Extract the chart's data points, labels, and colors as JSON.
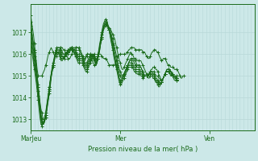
{
  "title": "Pression niveau de la mer( hPa )",
  "bg_color": "#cce8e8",
  "line_color": "#1a6b1a",
  "grid_color_v": "#b8d8d8",
  "grid_color_h": "#b8d8d8",
  "tick_color": "#1a6b1a",
  "ylim": [
    1012.5,
    1018.3
  ],
  "yticks": [
    1013,
    1014,
    1015,
    1016,
    1017
  ],
  "xtick_labels": [
    "MarJeu",
    "Mer",
    "Ven"
  ],
  "xtick_positions": [
    0,
    96,
    192
  ],
  "total_points": 241,
  "series": [
    [
      1017.8,
      1017.5,
      1017.2,
      1016.9,
      1016.5,
      1016.1,
      1015.7,
      1015.3,
      1015.0,
      1015.0,
      1015.0,
      1015.0,
      1015.0,
      1015.1,
      1015.2,
      1015.3,
      1015.5,
      1015.6,
      1015.8,
      1016.0,
      1016.1,
      1016.2,
      1016.3,
      1016.2,
      1016.1,
      1016.0,
      1015.9,
      1015.9,
      1015.9,
      1016.0,
      1016.1,
      1016.2,
      1016.3,
      1016.3,
      1016.3,
      1016.2,
      1016.2,
      1016.1,
      1016.0,
      1015.9,
      1015.8,
      1015.8,
      1015.8,
      1015.9,
      1016.0,
      1016.1,
      1016.2,
      1016.2,
      1016.3,
      1016.3,
      1016.3,
      1016.3,
      1016.3,
      1016.2,
      1016.1,
      1016.0,
      1015.9,
      1015.8,
      1015.8,
      1015.9,
      1016.0,
      1016.0,
      1016.0,
      1016.0,
      1016.0,
      1016.0,
      1015.9,
      1015.9,
      1015.8,
      1015.8,
      1015.8,
      1015.8,
      1015.9,
      1016.0,
      1016.0,
      1016.0,
      1015.9,
      1015.9,
      1015.8,
      1015.8,
      1015.8,
      1015.8,
      1015.7,
      1015.6,
      1015.5,
      1015.5,
      1015.5,
      1015.5,
      1015.5,
      1015.5,
      1015.5,
      1015.6,
      1015.7,
      1015.8,
      1015.9,
      1016.0,
      1016.0,
      1016.0,
      1016.0,
      1016.0,
      1016.0,
      1016.0,
      1016.0,
      1016.1,
      1016.1,
      1016.2,
      1016.2,
      1016.3,
      1016.3,
      1016.3,
      1016.3,
      1016.3,
      1016.2,
      1016.2,
      1016.2,
      1016.2,
      1016.2,
      1016.2,
      1016.2,
      1016.2,
      1016.1,
      1016.1,
      1016.1,
      1016.0,
      1015.9,
      1015.9,
      1015.8,
      1015.8,
      1015.9,
      1016.0,
      1016.1,
      1016.1,
      1016.2,
      1016.2,
      1016.2,
      1016.1,
      1016.1,
      1016.0,
      1015.9,
      1015.8,
      1015.7,
      1015.7,
      1015.8,
      1015.8,
      1015.8,
      1015.7,
      1015.6,
      1015.5,
      1015.5,
      1015.5,
      1015.4,
      1015.4,
      1015.4,
      1015.4,
      1015.3,
      1015.3,
      1015.3,
      1015.3,
      1015.2,
      1015.1,
      1015.0,
      1014.9,
      1014.9,
      1015.0,
      1015.0
    ],
    [
      1017.5,
      1017.2,
      1016.8,
      1016.5,
      1016.2,
      1015.9,
      1015.5,
      1015.0,
      1014.6,
      1014.2,
      1013.8,
      1013.5,
      1013.3,
      1013.1,
      1013.0,
      1013.0,
      1013.1,
      1013.3,
      1013.6,
      1013.9,
      1014.2,
      1014.5,
      1014.9,
      1015.2,
      1015.5,
      1015.7,
      1015.9,
      1016.1,
      1016.2,
      1016.3,
      1016.3,
      1016.3,
      1016.3,
      1016.2,
      1016.1,
      1016.0,
      1016.0,
      1016.0,
      1016.0,
      1016.0,
      1016.1,
      1016.1,
      1016.2,
      1016.2,
      1016.3,
      1016.3,
      1016.3,
      1016.3,
      1016.3,
      1016.3,
      1016.3,
      1016.3,
      1016.2,
      1016.1,
      1016.0,
      1015.9,
      1015.8,
      1015.7,
      1015.7,
      1015.8,
      1015.9,
      1016.0,
      1016.0,
      1016.0,
      1015.9,
      1015.8,
      1015.7,
      1015.6,
      1015.5,
      1015.5,
      1015.5,
      1015.6,
      1015.8,
      1016.0,
      1016.2,
      1016.5,
      1016.7,
      1016.9,
      1017.1,
      1017.2,
      1017.3,
      1017.3,
      1017.3,
      1017.2,
      1017.2,
      1017.2,
      1017.1,
      1017.0,
      1016.9,
      1016.8,
      1016.7,
      1016.5,
      1016.3,
      1016.1,
      1015.9,
      1015.7,
      1015.6,
      1015.4,
      1015.3,
      1015.3,
      1015.4,
      1015.5,
      1015.6,
      1015.7,
      1015.8,
      1015.9,
      1016.0,
      1016.1,
      1016.0,
      1016.0,
      1015.9,
      1015.8,
      1015.8,
      1015.7,
      1015.7,
      1015.7,
      1015.7,
      1015.7,
      1015.7,
      1015.6,
      1015.5,
      1015.4,
      1015.3,
      1015.2,
      1015.1,
      1015.0,
      1015.0,
      1015.1,
      1015.2,
      1015.3,
      1015.3,
      1015.4,
      1015.4,
      1015.4,
      1015.3,
      1015.3,
      1015.2,
      1015.1,
      1015.0,
      1014.9,
      1014.8,
      1014.8,
      1014.9,
      1015.0,
      1015.1,
      1015.2,
      1015.2,
      1015.2,
      1015.2,
      1015.2,
      1015.2,
      1015.1,
      1015.0,
      1015.0,
      1015.0,
      1015.0,
      1015.0,
      1015.0,
      1015.0
    ],
    [
      1017.3,
      1017.0,
      1016.7,
      1016.4,
      1016.1,
      1015.8,
      1015.4,
      1015.0,
      1014.5,
      1014.0,
      1013.6,
      1013.2,
      1013.0,
      1012.9,
      1012.9,
      1013.0,
      1013.2,
      1013.5,
      1013.8,
      1014.1,
      1014.5,
      1014.8,
      1015.1,
      1015.4,
      1015.6,
      1015.8,
      1016.0,
      1016.2,
      1016.3,
      1016.3,
      1016.3,
      1016.3,
      1016.2,
      1016.1,
      1016.0,
      1016.0,
      1016.0,
      1016.0,
      1016.1,
      1016.1,
      1016.2,
      1016.2,
      1016.2,
      1016.3,
      1016.3,
      1016.3,
      1016.2,
      1016.2,
      1016.2,
      1016.1,
      1016.0,
      1016.0,
      1016.0,
      1016.0,
      1016.0,
      1015.9,
      1015.8,
      1015.7,
      1015.6,
      1015.6,
      1015.6,
      1015.7,
      1015.8,
      1015.9,
      1016.0,
      1016.0,
      1015.9,
      1015.8,
      1015.7,
      1015.6,
      1015.6,
      1015.7,
      1015.9,
      1016.1,
      1016.3,
      1016.6,
      1016.8,
      1017.0,
      1017.2,
      1017.3,
      1017.4,
      1017.4,
      1017.4,
      1017.3,
      1017.2,
      1017.1,
      1017.0,
      1016.8,
      1016.7,
      1016.5,
      1016.3,
      1016.1,
      1015.9,
      1015.7,
      1015.5,
      1015.3,
      1015.2,
      1015.1,
      1015.0,
      1015.0,
      1015.1,
      1015.2,
      1015.3,
      1015.4,
      1015.5,
      1015.6,
      1015.7,
      1015.8,
      1015.8,
      1015.8,
      1015.8,
      1015.7,
      1015.7,
      1015.6,
      1015.5,
      1015.5,
      1015.5,
      1015.5,
      1015.4,
      1015.3,
      1015.2,
      1015.1,
      1015.0,
      1015.0,
      1015.0,
      1015.0,
      1015.1,
      1015.1,
      1015.2,
      1015.2,
      1015.2,
      1015.2,
      1015.2,
      1015.1,
      1015.0,
      1015.0,
      1015.0,
      1014.9,
      1014.9,
      1014.8,
      1014.8,
      1014.8,
      1014.9,
      1015.0,
      1015.1,
      1015.2,
      1015.3,
      1015.3,
      1015.3,
      1015.3,
      1015.2,
      1015.2,
      1015.1,
      1015.0,
      1015.0,
      1015.0,
      1014.9,
      1014.9,
      1014.9
    ],
    [
      1017.1,
      1016.8,
      1016.5,
      1016.2,
      1015.9,
      1015.6,
      1015.2,
      1014.9,
      1014.5,
      1014.1,
      1013.7,
      1013.3,
      1013.0,
      1012.8,
      1012.8,
      1012.9,
      1013.1,
      1013.4,
      1013.7,
      1014.0,
      1014.4,
      1014.7,
      1015.0,
      1015.3,
      1015.5,
      1015.7,
      1015.9,
      1016.1,
      1016.2,
      1016.2,
      1016.2,
      1016.2,
      1016.1,
      1016.0,
      1015.9,
      1015.9,
      1015.9,
      1016.0,
      1016.0,
      1016.1,
      1016.2,
      1016.2,
      1016.3,
      1016.3,
      1016.3,
      1016.3,
      1016.2,
      1016.2,
      1016.1,
      1016.0,
      1016.0,
      1015.9,
      1015.9,
      1015.9,
      1015.9,
      1015.9,
      1015.8,
      1015.7,
      1015.6,
      1015.5,
      1015.5,
      1015.6,
      1015.7,
      1015.8,
      1015.9,
      1016.0,
      1016.0,
      1015.9,
      1015.8,
      1015.6,
      1015.5,
      1015.6,
      1015.8,
      1016.0,
      1016.2,
      1016.5,
      1016.7,
      1017.0,
      1017.2,
      1017.3,
      1017.4,
      1017.4,
      1017.3,
      1017.2,
      1017.1,
      1017.0,
      1016.9,
      1016.7,
      1016.5,
      1016.3,
      1016.1,
      1015.9,
      1015.7,
      1015.5,
      1015.3,
      1015.1,
      1015.0,
      1014.9,
      1014.9,
      1015.0,
      1015.1,
      1015.2,
      1015.3,
      1015.4,
      1015.5,
      1015.6,
      1015.7,
      1015.7,
      1015.7,
      1015.7,
      1015.7,
      1015.6,
      1015.5,
      1015.5,
      1015.4,
      1015.4,
      1015.4,
      1015.4,
      1015.4,
      1015.3,
      1015.2,
      1015.1,
      1015.0,
      1015.0,
      1015.0,
      1015.0,
      1015.1,
      1015.1,
      1015.1,
      1015.2,
      1015.2,
      1015.1,
      1015.1,
      1015.0,
      1014.9,
      1014.9,
      1014.8,
      1014.8,
      1014.7,
      1014.7,
      1014.7,
      1014.8,
      1014.9,
      1015.0,
      1015.1,
      1015.2,
      1015.3,
      1015.3,
      1015.3,
      1015.3,
      1015.2,
      1015.1,
      1015.1,
      1015.0,
      1015.0,
      1015.0,
      1014.9,
      1014.8,
      1014.8
    ],
    [
      1016.9,
      1016.6,
      1016.3,
      1016.0,
      1015.7,
      1015.4,
      1015.1,
      1014.7,
      1014.3,
      1013.9,
      1013.5,
      1013.1,
      1012.9,
      1012.8,
      1012.8,
      1012.9,
      1013.1,
      1013.4,
      1013.7,
      1014.0,
      1014.3,
      1014.7,
      1015.0,
      1015.2,
      1015.5,
      1015.7,
      1015.9,
      1016.0,
      1016.1,
      1016.1,
      1016.1,
      1016.1,
      1016.0,
      1015.9,
      1015.9,
      1015.8,
      1015.9,
      1015.9,
      1016.0,
      1016.1,
      1016.1,
      1016.2,
      1016.2,
      1016.3,
      1016.3,
      1016.2,
      1016.2,
      1016.1,
      1016.0,
      1016.0,
      1015.9,
      1015.8,
      1015.8,
      1015.8,
      1015.8,
      1015.8,
      1015.7,
      1015.6,
      1015.5,
      1015.4,
      1015.4,
      1015.5,
      1015.6,
      1015.7,
      1015.8,
      1015.9,
      1016.0,
      1016.0,
      1015.9,
      1015.7,
      1015.5,
      1015.6,
      1015.8,
      1016.0,
      1016.3,
      1016.5,
      1016.8,
      1017.0,
      1017.2,
      1017.3,
      1017.4,
      1017.4,
      1017.3,
      1017.2,
      1017.1,
      1016.9,
      1016.8,
      1016.6,
      1016.4,
      1016.1,
      1015.9,
      1015.7,
      1015.5,
      1015.3,
      1015.1,
      1014.9,
      1014.8,
      1014.8,
      1014.9,
      1015.0,
      1015.1,
      1015.2,
      1015.3,
      1015.4,
      1015.5,
      1015.6,
      1015.6,
      1015.6,
      1015.6,
      1015.6,
      1015.5,
      1015.4,
      1015.4,
      1015.3,
      1015.3,
      1015.3,
      1015.3,
      1015.3,
      1015.2,
      1015.2,
      1015.1,
      1015.0,
      1015.0,
      1015.0,
      1015.0,
      1015.0,
      1015.0,
      1015.1,
      1015.1,
      1015.1,
      1015.1,
      1015.0,
      1015.0,
      1014.9,
      1014.8,
      1014.8,
      1014.7,
      1014.7,
      1014.6,
      1014.7,
      1014.7,
      1014.8,
      1014.9,
      1015.0,
      1015.1,
      1015.2,
      1015.3,
      1015.3,
      1015.3,
      1015.2,
      1015.2,
      1015.1,
      1015.0,
      1015.0,
      1015.0,
      1014.9,
      1014.9,
      1014.8,
      1014.8
    ],
    [
      1016.7,
      1016.4,
      1016.1,
      1015.8,
      1015.5,
      1015.2,
      1014.9,
      1014.5,
      1014.1,
      1013.7,
      1013.3,
      1012.9,
      1012.8,
      1012.8,
      1012.9,
      1013.0,
      1013.2,
      1013.5,
      1013.8,
      1014.1,
      1014.4,
      1014.7,
      1015.0,
      1015.2,
      1015.4,
      1015.6,
      1015.8,
      1016.0,
      1016.1,
      1016.1,
      1016.1,
      1016.0,
      1015.9,
      1015.8,
      1015.8,
      1015.8,
      1015.9,
      1015.9,
      1016.0,
      1016.0,
      1016.1,
      1016.1,
      1016.2,
      1016.2,
      1016.2,
      1016.2,
      1016.1,
      1016.0,
      1016.0,
      1015.9,
      1015.8,
      1015.7,
      1015.7,
      1015.7,
      1015.7,
      1015.7,
      1015.6,
      1015.5,
      1015.4,
      1015.3,
      1015.3,
      1015.4,
      1015.5,
      1015.6,
      1015.7,
      1015.8,
      1015.9,
      1016.0,
      1015.9,
      1015.8,
      1015.6,
      1015.7,
      1015.9,
      1016.1,
      1016.4,
      1016.6,
      1016.9,
      1017.1,
      1017.3,
      1017.4,
      1017.5,
      1017.5,
      1017.4,
      1017.3,
      1017.1,
      1016.9,
      1016.7,
      1016.5,
      1016.3,
      1016.0,
      1015.8,
      1015.6,
      1015.4,
      1015.2,
      1015.0,
      1014.8,
      1014.7,
      1014.7,
      1014.8,
      1014.9,
      1015.0,
      1015.1,
      1015.2,
      1015.3,
      1015.4,
      1015.5,
      1015.5,
      1015.5,
      1015.5,
      1015.5,
      1015.4,
      1015.3,
      1015.3,
      1015.2,
      1015.2,
      1015.2,
      1015.2,
      1015.2,
      1015.1,
      1015.1,
      1015.0,
      1014.9,
      1015.0,
      1015.0,
      1015.0,
      1015.0,
      1015.0,
      1015.0,
      1015.0,
      1015.0,
      1015.0,
      1015.0,
      1015.0,
      1014.9,
      1014.8,
      1014.7,
      1014.7,
      1014.6,
      1014.6,
      1014.6,
      1014.7,
      1014.8,
      1014.9,
      1015.0,
      1015.1,
      1015.2,
      1015.2,
      1015.2,
      1015.2,
      1015.1,
      1015.1,
      1015.0,
      1015.0,
      1015.0,
      1014.9,
      1014.9,
      1014.8,
      1014.8,
      1014.8
    ],
    [
      1016.5,
      1016.2,
      1015.9,
      1015.6,
      1015.3,
      1015.0,
      1014.7,
      1014.3,
      1013.9,
      1013.5,
      1013.1,
      1012.8,
      1012.7,
      1012.8,
      1012.9,
      1013.1,
      1013.3,
      1013.6,
      1013.9,
      1014.2,
      1014.5,
      1014.8,
      1015.1,
      1015.3,
      1015.5,
      1015.7,
      1015.9,
      1016.0,
      1016.1,
      1016.1,
      1016.0,
      1015.9,
      1015.8,
      1015.7,
      1015.7,
      1015.8,
      1015.8,
      1015.9,
      1015.9,
      1016.0,
      1016.0,
      1016.1,
      1016.1,
      1016.2,
      1016.2,
      1016.1,
      1016.1,
      1016.0,
      1015.9,
      1015.8,
      1015.7,
      1015.6,
      1015.6,
      1015.6,
      1015.6,
      1015.6,
      1015.5,
      1015.4,
      1015.3,
      1015.2,
      1015.2,
      1015.3,
      1015.4,
      1015.5,
      1015.6,
      1015.7,
      1015.8,
      1016.0,
      1016.0,
      1015.9,
      1015.7,
      1015.8,
      1016.0,
      1016.2,
      1016.5,
      1016.7,
      1017.0,
      1017.2,
      1017.4,
      1017.5,
      1017.6,
      1017.6,
      1017.5,
      1017.3,
      1017.1,
      1016.9,
      1016.6,
      1016.4,
      1016.2,
      1015.9,
      1015.7,
      1015.5,
      1015.3,
      1015.1,
      1014.9,
      1014.7,
      1014.6,
      1014.6,
      1014.7,
      1014.8,
      1014.9,
      1015.0,
      1015.1,
      1015.2,
      1015.3,
      1015.4,
      1015.4,
      1015.4,
      1015.4,
      1015.4,
      1015.3,
      1015.2,
      1015.2,
      1015.1,
      1015.1,
      1015.1,
      1015.1,
      1015.1,
      1015.0,
      1015.0,
      1014.9,
      1014.9,
      1015.0,
      1015.0,
      1015.0,
      1015.0,
      1014.9,
      1014.9,
      1015.0,
      1015.0,
      1015.0,
      1014.9,
      1014.9,
      1014.8,
      1014.7,
      1014.7,
      1014.6,
      1014.5,
      1014.5,
      1014.6,
      1014.7,
      1014.8,
      1014.9,
      1015.0,
      1015.1,
      1015.2,
      1015.2,
      1015.2,
      1015.2,
      1015.1,
      1015.0,
      1015.0,
      1015.0,
      1014.9,
      1014.8,
      1014.8,
      1014.8,
      1014.8,
      1014.8
    ]
  ]
}
